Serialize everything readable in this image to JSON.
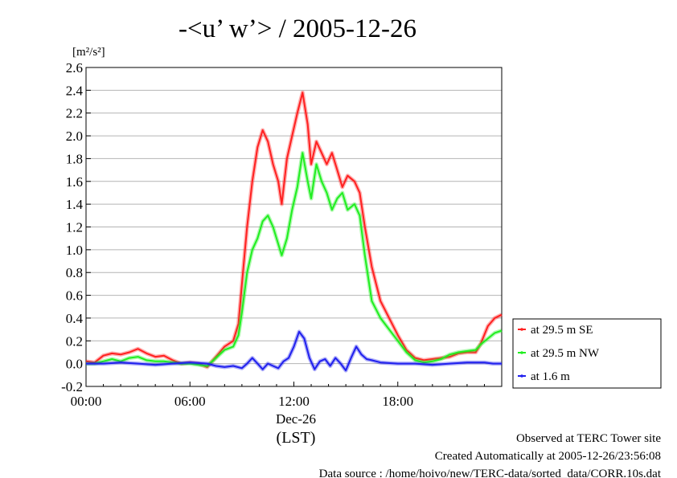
{
  "chart_data": {
    "type": "line",
    "title": "-<u’ w’> / 2005-12-26",
    "ylabel": "[m²/s²]",
    "ylim": [
      -0.2,
      2.6
    ],
    "yticks": [
      "-0.2",
      "0.0",
      "0.2",
      "0.4",
      "0.6",
      "0.8",
      "1.0",
      "1.2",
      "1.4",
      "1.6",
      "1.8",
      "2.0",
      "2.2",
      "2.4",
      "2.6"
    ],
    "xlim": [
      0,
      24
    ],
    "xticks": [
      {
        "hour": 0,
        "label": "00:00"
      },
      {
        "hour": 6,
        "label": "06:00"
      },
      {
        "hour": 12,
        "label": "12:00"
      },
      {
        "hour": 18,
        "label": "18:00"
      }
    ],
    "date_label": "Dec-26",
    "time_zone_label": "(LST)",
    "grid": true,
    "legend_placement": "right",
    "series": [
      {
        "name": "at 29.5 m SE",
        "color": "#ff2020",
        "points": [
          [
            0,
            0.02
          ],
          [
            0.5,
            0.01
          ],
          [
            1,
            0.07
          ],
          [
            1.5,
            0.09
          ],
          [
            2,
            0.08
          ],
          [
            2.5,
            0.1
          ],
          [
            3,
            0.13
          ],
          [
            3.5,
            0.09
          ],
          [
            4,
            0.06
          ],
          [
            4.5,
            0.07
          ],
          [
            5,
            0.03
          ],
          [
            5.5,
            0.0
          ],
          [
            6,
            0.01
          ],
          [
            6.5,
            0.0
          ],
          [
            7,
            -0.03
          ],
          [
            7.5,
            0.06
          ],
          [
            8,
            0.15
          ],
          [
            8.5,
            0.2
          ],
          [
            8.8,
            0.35
          ],
          [
            9,
            0.7
          ],
          [
            9.3,
            1.2
          ],
          [
            9.6,
            1.6
          ],
          [
            9.9,
            1.9
          ],
          [
            10.2,
            2.05
          ],
          [
            10.5,
            1.95
          ],
          [
            10.8,
            1.75
          ],
          [
            11.1,
            1.6
          ],
          [
            11.3,
            1.4
          ],
          [
            11.6,
            1.8
          ],
          [
            11.9,
            2.0
          ],
          [
            12.2,
            2.2
          ],
          [
            12.5,
            2.38
          ],
          [
            12.8,
            2.1
          ],
          [
            13.0,
            1.75
          ],
          [
            13.3,
            1.95
          ],
          [
            13.6,
            1.85
          ],
          [
            13.9,
            1.75
          ],
          [
            14.2,
            1.85
          ],
          [
            14.5,
            1.7
          ],
          [
            14.8,
            1.55
          ],
          [
            15.1,
            1.65
          ],
          [
            15.5,
            1.6
          ],
          [
            15.8,
            1.5
          ],
          [
            16.1,
            1.2
          ],
          [
            16.5,
            0.85
          ],
          [
            17.0,
            0.55
          ],
          [
            17.5,
            0.4
          ],
          [
            18.0,
            0.25
          ],
          [
            18.5,
            0.12
          ],
          [
            19.0,
            0.05
          ],
          [
            19.5,
            0.03
          ],
          [
            20,
            0.04
          ],
          [
            20.5,
            0.05
          ],
          [
            21,
            0.06
          ],
          [
            21.5,
            0.09
          ],
          [
            22,
            0.1
          ],
          [
            22.5,
            0.1
          ],
          [
            22.8,
            0.18
          ],
          [
            23.2,
            0.33
          ],
          [
            23.6,
            0.4
          ],
          [
            24,
            0.43
          ]
        ]
      },
      {
        "name": "at 29.5 m NW",
        "color": "#20ee20",
        "points": [
          [
            0,
            0.0
          ],
          [
            0.5,
            0.0
          ],
          [
            1,
            0.02
          ],
          [
            1.5,
            0.04
          ],
          [
            2,
            0.02
          ],
          [
            2.5,
            0.05
          ],
          [
            3,
            0.06
          ],
          [
            3.5,
            0.03
          ],
          [
            4,
            0.02
          ],
          [
            4.5,
            0.02
          ],
          [
            5,
            0.01
          ],
          [
            5.5,
            0.0
          ],
          [
            6,
            0.0
          ],
          [
            6.5,
            -0.01
          ],
          [
            7,
            -0.02
          ],
          [
            7.5,
            0.05
          ],
          [
            8,
            0.12
          ],
          [
            8.5,
            0.15
          ],
          [
            8.8,
            0.25
          ],
          [
            9,
            0.45
          ],
          [
            9.3,
            0.8
          ],
          [
            9.6,
            1.0
          ],
          [
            9.9,
            1.1
          ],
          [
            10.2,
            1.25
          ],
          [
            10.5,
            1.3
          ],
          [
            10.8,
            1.2
          ],
          [
            11.1,
            1.05
          ],
          [
            11.3,
            0.95
          ],
          [
            11.6,
            1.1
          ],
          [
            11.9,
            1.35
          ],
          [
            12.2,
            1.55
          ],
          [
            12.5,
            1.85
          ],
          [
            12.8,
            1.6
          ],
          [
            13.0,
            1.45
          ],
          [
            13.3,
            1.75
          ],
          [
            13.6,
            1.6
          ],
          [
            13.9,
            1.5
          ],
          [
            14.2,
            1.35
          ],
          [
            14.5,
            1.45
          ],
          [
            14.8,
            1.5
          ],
          [
            15.1,
            1.35
          ],
          [
            15.5,
            1.4
          ],
          [
            15.8,
            1.3
          ],
          [
            16.1,
            0.95
          ],
          [
            16.5,
            0.55
          ],
          [
            17.0,
            0.4
          ],
          [
            17.5,
            0.3
          ],
          [
            18.0,
            0.2
          ],
          [
            18.5,
            0.1
          ],
          [
            19.0,
            0.03
          ],
          [
            19.5,
            0.01
          ],
          [
            20,
            0.02
          ],
          [
            20.5,
            0.04
          ],
          [
            21,
            0.08
          ],
          [
            21.5,
            0.1
          ],
          [
            22,
            0.11
          ],
          [
            22.5,
            0.12
          ],
          [
            22.8,
            0.17
          ],
          [
            23.2,
            0.22
          ],
          [
            23.6,
            0.27
          ],
          [
            24,
            0.29
          ]
        ]
      },
      {
        "name": "at 1.6 m",
        "color": "#2020ee",
        "points": [
          [
            0,
            0.0
          ],
          [
            1,
            0.0
          ],
          [
            2,
            0.01
          ],
          [
            3,
            0.0
          ],
          [
            4,
            -0.01
          ],
          [
            5,
            0.0
          ],
          [
            6,
            0.01
          ],
          [
            7,
            0.0
          ],
          [
            7.5,
            -0.02
          ],
          [
            8,
            -0.03
          ],
          [
            8.5,
            -0.02
          ],
          [
            9,
            -0.04
          ],
          [
            9.3,
            0.0
          ],
          [
            9.6,
            0.05
          ],
          [
            9.9,
            0.0
          ],
          [
            10.2,
            -0.05
          ],
          [
            10.5,
            0.0
          ],
          [
            10.8,
            -0.02
          ],
          [
            11.1,
            -0.04
          ],
          [
            11.4,
            0.02
          ],
          [
            11.7,
            0.05
          ],
          [
            12.0,
            0.15
          ],
          [
            12.3,
            0.28
          ],
          [
            12.6,
            0.22
          ],
          [
            12.9,
            0.05
          ],
          [
            13.2,
            -0.05
          ],
          [
            13.5,
            0.02
          ],
          [
            13.8,
            0.04
          ],
          [
            14.1,
            -0.02
          ],
          [
            14.4,
            0.05
          ],
          [
            14.7,
            0.0
          ],
          [
            15.0,
            -0.06
          ],
          [
            15.3,
            0.05
          ],
          [
            15.6,
            0.15
          ],
          [
            15.9,
            0.08
          ],
          [
            16.2,
            0.04
          ],
          [
            16.5,
            0.03
          ],
          [
            17,
            0.01
          ],
          [
            18,
            0.0
          ],
          [
            19,
            0.0
          ],
          [
            20,
            -0.01
          ],
          [
            21,
            0.0
          ],
          [
            22,
            0.01
          ],
          [
            23,
            0.01
          ],
          [
            23.5,
            0.0
          ],
          [
            24,
            0.0
          ]
        ]
      }
    ]
  },
  "footer": {
    "line1": "Observed at TERC Tower site",
    "line2": "Created Automatically at 2005-12-26/23:56:08",
    "line3": "Data source : /home/hoivo/new/TERC-data/sorted_data/CORR.10s.dat"
  }
}
